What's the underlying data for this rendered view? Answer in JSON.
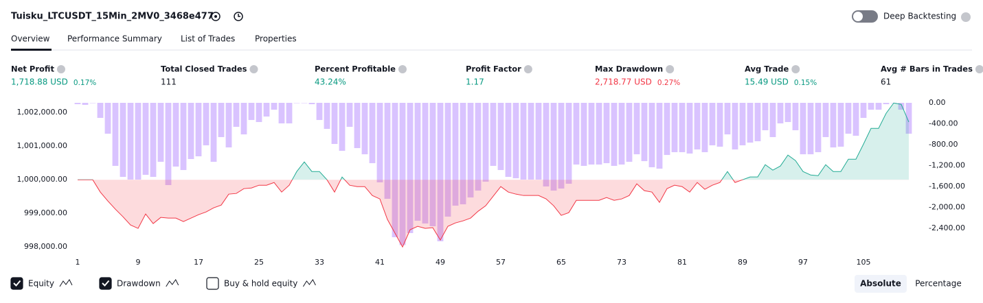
{
  "header": {
    "title": "Tuisku_LTCUSDT_15Min_2MV0_3468e477",
    "toggle_label": "Deep Backtesting"
  },
  "tabs": [
    "Overview",
    "Performance Summary",
    "List of Trades",
    "Properties"
  ],
  "metrics": [
    {
      "label": "Net Profit",
      "value": "1,718.88 USD",
      "pct": "0.17%",
      "color": "#089981"
    },
    {
      "label": "Total Closed Trades",
      "value": "111",
      "color": "#131722"
    },
    {
      "label": "Percent Profitable",
      "value": "43.24%",
      "color": "#089981"
    },
    {
      "label": "Profit Factor",
      "value": "1.17",
      "color": "#089981"
    },
    {
      "label": "Max Drawdown",
      "value": "2,718.77 USD",
      "pct": "0.27%",
      "color": "#f23645"
    },
    {
      "label": "Avg Trade",
      "value": "15.49 USD",
      "pct": "0.15%",
      "color": "#089981"
    },
    {
      "label": "Avg # Bars in Trades",
      "value": "61",
      "color": "#131722"
    }
  ],
  "chart": {
    "type": "line",
    "x": [
      1,
      2,
      3,
      4,
      5,
      6,
      7,
      8,
      9,
      10,
      11,
      12,
      13,
      14,
      15,
      16,
      17,
      18,
      19,
      20,
      21,
      22,
      23,
      24,
      25,
      26,
      27,
      28,
      29,
      30,
      31,
      32,
      33,
      34,
      35,
      36,
      37,
      38,
      39,
      40,
      41,
      42,
      43,
      44,
      45,
      46,
      47,
      48,
      49,
      50,
      51,
      52,
      53,
      54,
      55,
      56,
      57,
      58,
      59,
      60,
      61,
      62,
      63,
      64,
      65,
      66,
      67,
      68,
      69,
      70,
      71,
      72,
      73,
      74,
      75,
      76,
      77,
      78,
      79,
      80,
      81,
      82,
      83,
      84,
      85,
      86,
      87,
      88,
      89,
      90,
      91,
      92,
      93,
      94,
      95,
      96,
      97,
      98,
      99,
      100,
      101,
      102,
      103,
      104,
      105,
      106,
      107,
      108,
      109,
      110,
      111
    ],
    "xlim": [
      0,
      113
    ],
    "xticks": [
      1,
      9,
      17,
      25,
      33,
      41,
      49,
      57,
      65,
      73,
      81,
      89,
      97,
      105
    ],
    "baseline": 1000000,
    "series": [
      {
        "name": "Equity",
        "type": "line",
        "checked": true,
        "color": "#22ab94",
        "color_below": "#f23645",
        "values": [
          1000000,
          1000000,
          1000000,
          999633,
          999368,
          999123,
          998898,
          998654,
          998552,
          998980,
          998694,
          998878,
          998858,
          998858,
          998756,
          998858,
          998960,
          999041,
          999164,
          999245,
          999572,
          999592,
          999735,
          999755,
          999837,
          999837,
          999918,
          999633,
          999837,
          1000245,
          1000530,
          1000245,
          1000245,
          1000000,
          999633,
          1000082,
          999837,
          999796,
          999796,
          999531,
          999429,
          998817,
          998409,
          998000,
          998511,
          998613,
          998552,
          998572,
          998205,
          998613,
          998715,
          998776,
          998858,
          999062,
          999225,
          999510,
          999796,
          999633,
          999572,
          999531,
          999531,
          999531,
          999429,
          999225,
          998939,
          999021,
          999388,
          999388,
          999388,
          999388,
          999470,
          999388,
          999429,
          999531,
          999878,
          999674,
          999633,
          999327,
          999735,
          999837,
          999796,
          999633,
          999918,
          999715,
          999837,
          999918,
          1000245,
          999918,
          1000000,
          1000082,
          1000082,
          1000449,
          1000286,
          1000408,
          1000734,
          1000571,
          1000245,
          1000143,
          1000122,
          1000449,
          1000245,
          1000245,
          1000612,
          1000612,
          1001061,
          1001530,
          1001530,
          1001979,
          1002285,
          1002244,
          1001719
        ]
      },
      {
        "name": "Drawdown",
        "type": "bar",
        "axis": "y2",
        "checked": true,
        "color": "rgba(179,136,255,0.5)",
        "values": [
          -26,
          -39,
          0,
          -288,
          -590,
          -1205,
          -1415,
          -1467,
          -1467,
          -1376,
          -1415,
          -1127,
          -1572,
          -1218,
          -1284,
          -1074,
          -1022,
          -812,
          -1127,
          -655,
          -852,
          -459,
          -603,
          -328,
          -367,
          -262,
          -131,
          -393,
          -393,
          0,
          0,
          -26,
          -328,
          -498,
          -786,
          -917,
          -459,
          -865,
          -983,
          -1153,
          -1520,
          -1834,
          -2568,
          -2719,
          -2489,
          -2253,
          -2306,
          -2358,
          -2646,
          -2175,
          -1965,
          -1939,
          -1808,
          -1677,
          -1507,
          -1205,
          -1284,
          -1415,
          -1441,
          -1467,
          -1467,
          -1467,
          -1598,
          -1677,
          -1638,
          -1546,
          -1179,
          -1205,
          -1179,
          -1179,
          -1153,
          -1205,
          -1179,
          -1127,
          -983,
          -1114,
          -1231,
          -1258,
          -996,
          -943,
          -943,
          -969,
          -891,
          -943,
          -812,
          -838,
          -603,
          -891,
          -812,
          -760,
          -734,
          -524,
          -655,
          -393,
          -367,
          -524,
          -983,
          -983,
          -943,
          -655,
          -852,
          -838,
          -590,
          -629,
          -288,
          -131,
          -131,
          -26,
          0,
          -131,
          -590
        ]
      }
    ],
    "buy_hold": {
      "name": "Buy & hold equity",
      "checked": false
    },
    "ylim": [
      997800,
      1002290
    ],
    "yticks": [
      {
        "value": 998000,
        "label": "998,000.00"
      },
      {
        "value": 999000,
        "label": "999,000.00"
      },
      {
        "value": 1000000,
        "label": "1,000,000.00"
      },
      {
        "value": 1001000,
        "label": "1,001,000.00"
      },
      {
        "value": 1002000,
        "label": "1,002,000.00"
      }
    ],
    "y2lim": [
      -2882,
      0
    ],
    "y2ticks": [
      {
        "value": 0,
        "label": "0.00"
      },
      {
        "value": -400,
        "label": "-400.00"
      },
      {
        "value": -800,
        "label": "-800.00"
      },
      {
        "value": -1200,
        "label": "-1,200.00"
      },
      {
        "value": -1600,
        "label": "-1,600.00"
      },
      {
        "value": -2000,
        "label": "-2,000.00"
      },
      {
        "value": -2400,
        "label": "-2,400.00"
      }
    ]
  },
  "modes": [
    "Absolute",
    "Percentage"
  ]
}
